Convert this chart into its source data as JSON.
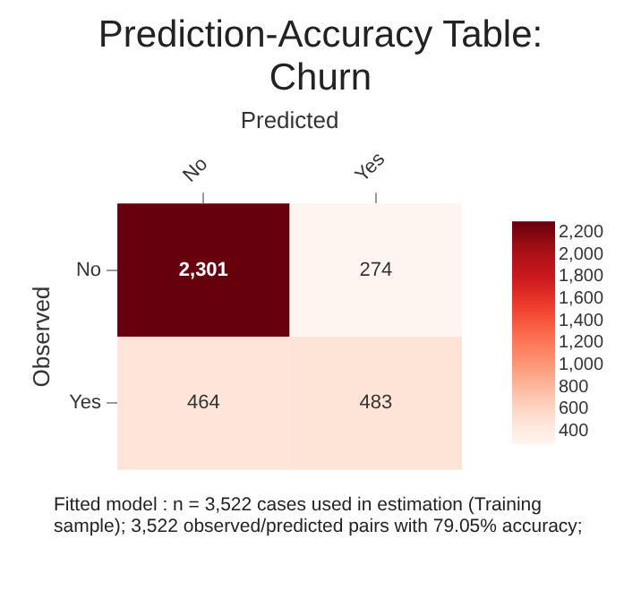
{
  "chart_data": {
    "type": "heatmap",
    "title": "Prediction-Accuracy Table: Churn",
    "xlabel": "Predicted",
    "ylabel": "Observed",
    "categories": [
      "No",
      "Yes"
    ],
    "y_categories": [
      "No",
      "Yes"
    ],
    "cells": [
      [
        2301,
        274
      ],
      [
        464,
        483
      ]
    ],
    "cell_labels": [
      [
        "2,301",
        "274"
      ],
      [
        "464",
        "483"
      ]
    ],
    "clim": [
      274,
      2301
    ],
    "cticks": [
      {
        "value": 400,
        "label": "400"
      },
      {
        "value": 600,
        "label": "600"
      },
      {
        "value": 800,
        "label": "800"
      },
      {
        "value": 1000,
        "label": "1,000"
      },
      {
        "value": 1200,
        "label": "1,200"
      },
      {
        "value": 1400,
        "label": "1,400"
      },
      {
        "value": 1600,
        "label": "1,600"
      },
      {
        "value": 1800,
        "label": "1,800"
      },
      {
        "value": 2000,
        "label": "2,000"
      },
      {
        "value": 2200,
        "label": "2,200"
      }
    ],
    "annotations": [
      "Fitted model : n = 3,522 cases used in estimation (Training sample); 3,522 observed/predicted pairs with 79.05% accuracy;"
    ]
  }
}
